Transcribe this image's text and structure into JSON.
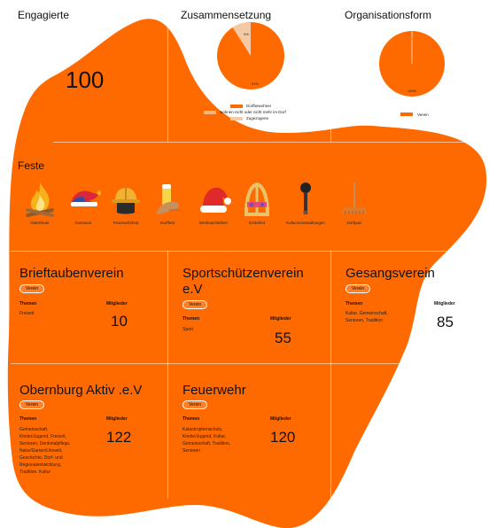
{
  "colors": {
    "blob": "#ff6a00",
    "pie_main": "#ff6a00",
    "pie_light": "#f7b47a",
    "pie_lighter": "#f6c9a5"
  },
  "engagierte": {
    "title": "Engagierte",
    "value": "100"
  },
  "zusammensetzung": {
    "title": "Zusammensetzung",
    "pie_labels": {
      "main": "91%",
      "small": "9%"
    },
    "legend": [
      "Dorfbewohner",
      "wohnen nicht oder nicht mehr im Dorf",
      "Zugezogene"
    ]
  },
  "organisationsform": {
    "title": "Organisationsform",
    "pie_label": "100%",
    "legend": [
      "Verein"
    ]
  },
  "chart_data": [
    {
      "type": "pie",
      "title": "Zusammensetzung",
      "categories": [
        "Dorfbewohner",
        "wohnen nicht oder nicht mehr im Dorf",
        "Zugezogene"
      ],
      "values": [
        91,
        0,
        9
      ]
    },
    {
      "type": "pie",
      "title": "Organisationsform",
      "categories": [
        "Verein"
      ],
      "values": [
        100
      ]
    }
  ],
  "feste": {
    "title": "Feste",
    "items": [
      {
        "label": "Osterfeuer",
        "icon": "bonfire-icon"
      },
      {
        "label": "Karneval",
        "icon": "jester-hat-icon"
      },
      {
        "label": "Feuerwehrfest",
        "icon": "fire-helmet-icon"
      },
      {
        "label": "Dorffest",
        "icon": "beer-sausage-icon"
      },
      {
        "label": "Weihnachtsfeier",
        "icon": "santa-hat-icon"
      },
      {
        "label": "Erntefest",
        "icon": "harvest-crown-icon"
      },
      {
        "label": "Kulturveranstaltungen",
        "icon": "microphone-icon"
      },
      {
        "label": "Dorfputz",
        "icon": "broom-icon"
      }
    ]
  },
  "cards": [
    {
      "name": "Brieftaubenverein",
      "badge": "Verein",
      "themen_label": "Themen",
      "themen": [
        "Freizeit"
      ],
      "mitglieder_label": "Mitglieder",
      "mitglieder": "10"
    },
    {
      "name": "Sportschützenverein e.V",
      "badge": "Verein",
      "themen_label": "Themen",
      "themen": [
        "Sport"
      ],
      "mitglieder_label": "Mitglieder",
      "mitglieder": "55"
    },
    {
      "name": "Gesangsverein",
      "badge": "Verein",
      "themen_label": "Themen",
      "themen": [
        "Kultur, Gemeinschaft,",
        "Senioren, Tradition"
      ],
      "mitglieder_label": "Mitglieder",
      "mitglieder": "85"
    },
    {
      "name": "Obernburg Aktiv .e.V",
      "badge": "Verein",
      "themen_label": "Themen",
      "themen": [
        "Gemeinschaft,",
        "Kinder/Jugend, Freizeit,",
        "Senioren, Denkmalpflege,",
        "Natur/Garten/Umwelt,",
        "Geschichte, Dorf- und",
        "Regionalentwicklung,",
        "Tradition, Kultur"
      ],
      "mitglieder_label": "Mitglieder",
      "mitglieder": "122"
    },
    {
      "name": "Feuerwehr",
      "badge": "Verein",
      "themen_label": "Themen",
      "themen": [
        "Katastrophenschutz,",
        "Kinder/Jugend, Kultur,",
        "Gemeinschaft, Tradition,",
        "Senioren"
      ],
      "mitglieder_label": "Mitglieder",
      "mitglieder": "120"
    }
  ]
}
